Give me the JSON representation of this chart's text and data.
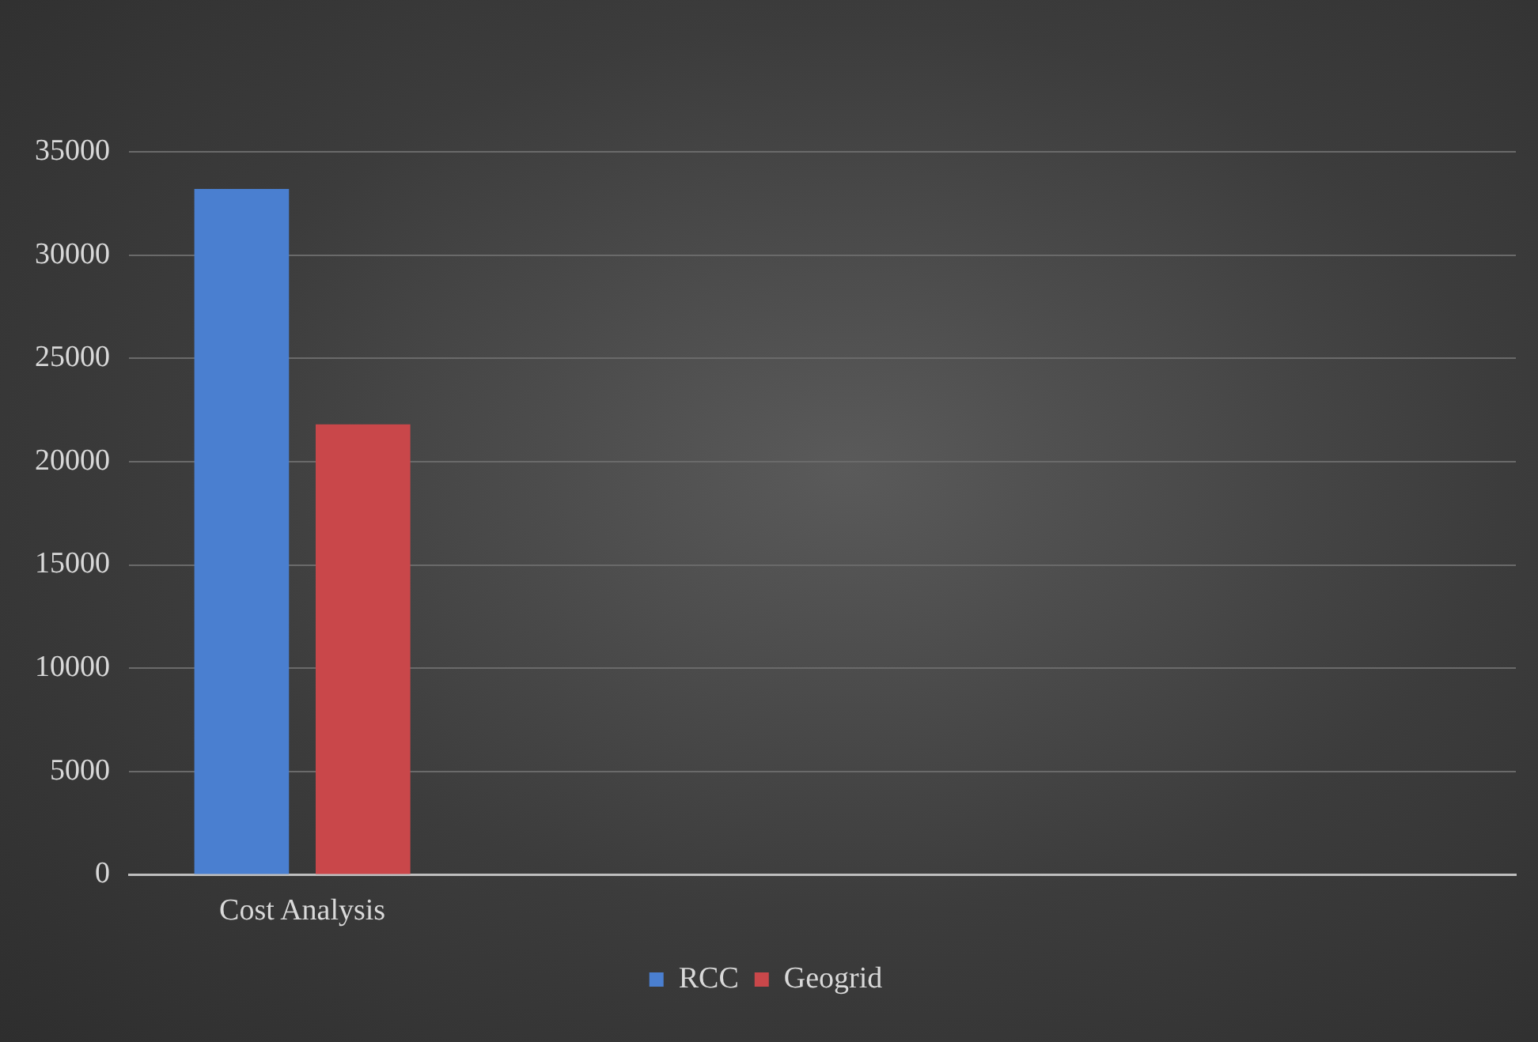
{
  "chart_data": {
    "type": "bar",
    "categories": [
      "Cost Analysis",
      null,
      null,
      null
    ],
    "series": [
      {
        "name": "RCC",
        "color": "#4a7fd0",
        "values": [
          33200,
          null,
          null,
          null
        ]
      },
      {
        "name": "Geogrid",
        "color": "#c9474a",
        "values": [
          21800,
          null,
          null,
          null
        ]
      }
    ],
    "ylim": [
      0,
      35000
    ],
    "yticks": [
      0,
      5000,
      10000,
      15000,
      20000,
      25000,
      30000,
      35000
    ],
    "grid": "y",
    "legend": "bottom"
  }
}
